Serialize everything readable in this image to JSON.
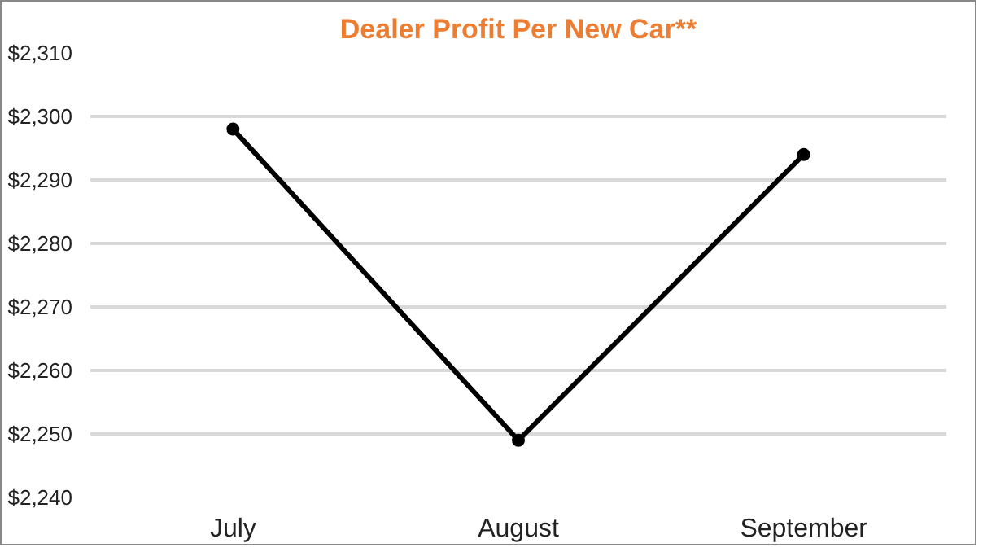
{
  "chart_data": {
    "type": "line",
    "title": "Dealer Profit Per New Car**",
    "categories": [
      "July",
      "August",
      "September"
    ],
    "series": [
      {
        "color": "#000000",
        "values": [
          2298,
          2249,
          2294
        ]
      }
    ],
    "ylim": [
      2240,
      2310
    ],
    "yticks": [
      {
        "value": 2240,
        "label": "$2,240"
      },
      {
        "value": 2250,
        "label": "$2,250"
      },
      {
        "value": 2260,
        "label": "$2,260"
      },
      {
        "value": 2270,
        "label": "$2,270"
      },
      {
        "value": 2280,
        "label": "$2,280"
      },
      {
        "value": 2290,
        "label": "$2,290"
      },
      {
        "value": 2300,
        "label": "$2,300"
      },
      {
        "value": 2310,
        "label": "$2,310"
      }
    ],
    "grid": "y",
    "marker": "circle",
    "line_style": "solid"
  }
}
